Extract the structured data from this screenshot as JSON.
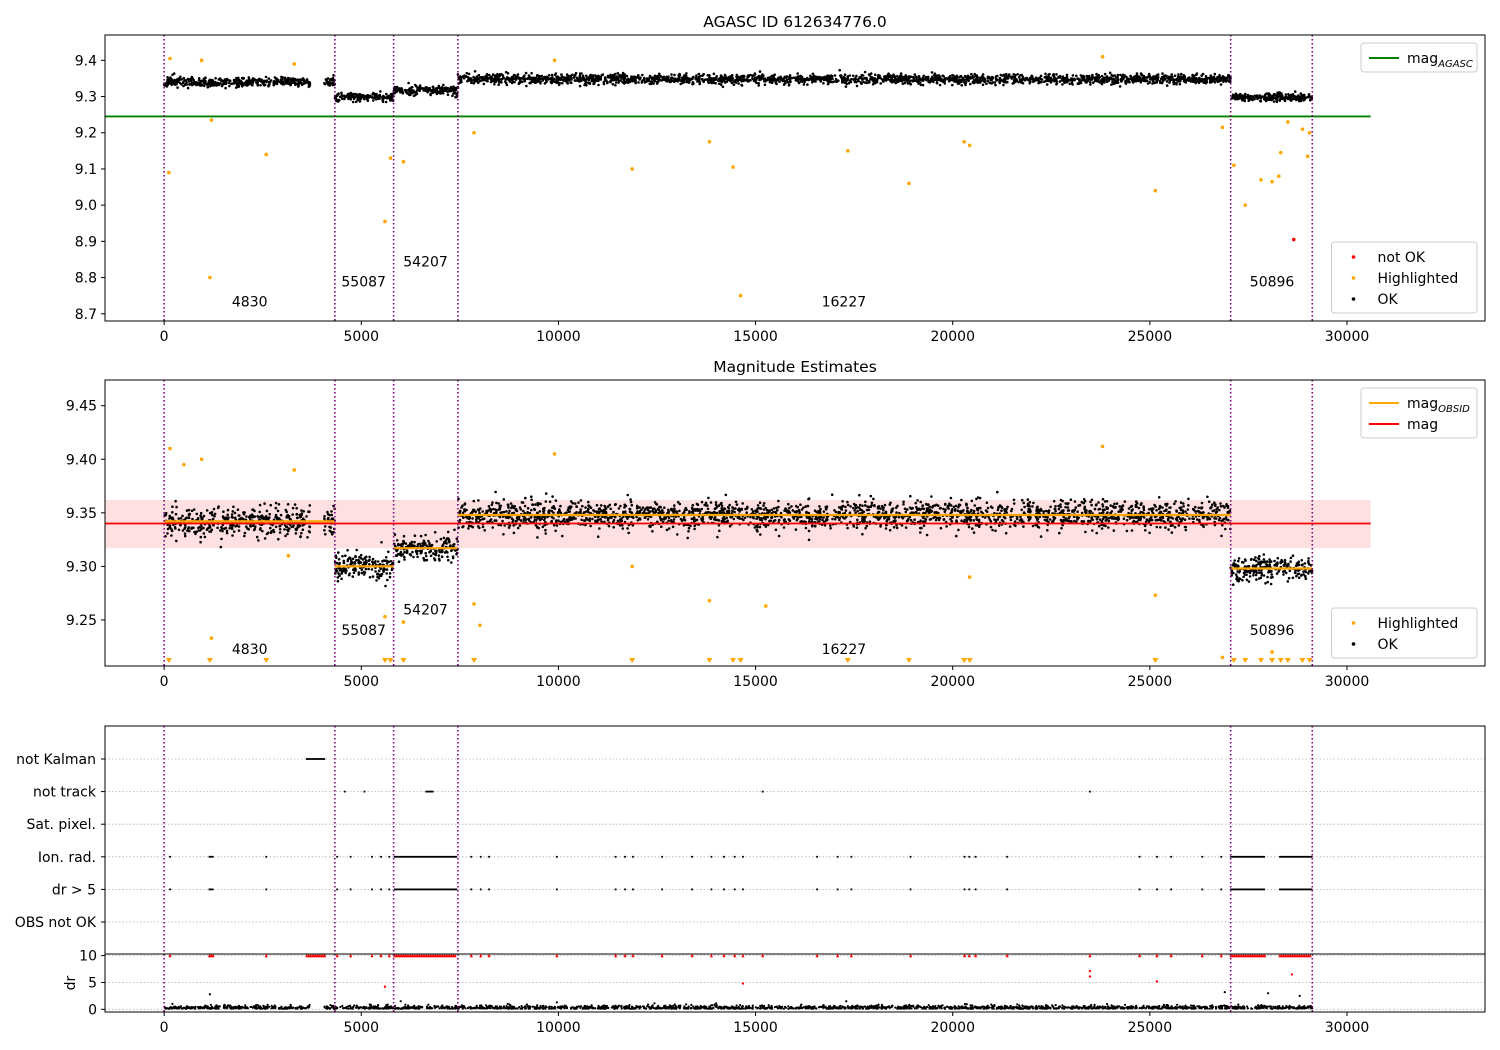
{
  "chart_data": [
    {
      "type": "scatter",
      "title": "AGASC ID 612634776.0",
      "xlabel": "",
      "ylabel": "",
      "xlim": [
        -1500,
        33500
      ],
      "ylim": [
        8.68,
        9.47
      ],
      "xticks": [
        0,
        5000,
        10000,
        15000,
        20000,
        25000,
        30000
      ],
      "yticks": [
        8.7,
        8.8,
        8.9,
        9.0,
        9.1,
        9.2,
        9.3,
        9.4
      ],
      "ytick_labels": [
        "8.7",
        "8.8",
        "8.9",
        "9.0",
        "9.1",
        "9.2",
        "9.3",
        "9.4"
      ],
      "obsid_boundaries": [
        0,
        4330,
        5820,
        7450,
        27050,
        29120
      ],
      "obsid_labels": [
        {
          "x": 2170,
          "y": 8.72,
          "text": "4830"
        },
        {
          "x": 5060,
          "y": 8.775,
          "text": "55087"
        },
        {
          "x": 6630,
          "y": 8.83,
          "text": "54207"
        },
        {
          "x": 17240,
          "y": 8.72,
          "text": "16227"
        },
        {
          "x": 28100,
          "y": 8.775,
          "text": "50896"
        }
      ],
      "lines": [
        {
          "name": "mag",
          "sub": "AGASC",
          "y": 9.245,
          "x": [
            -1500,
            30600
          ],
          "color": "#008000"
        }
      ],
      "segments": [
        {
          "x0": 0,
          "x1": 3700,
          "y": 9.34,
          "spread": 0.012,
          "kind": "uniform"
        },
        {
          "x0": 4050,
          "x1": 4330,
          "y": 9.34,
          "spread": 0.012,
          "kind": "step"
        },
        {
          "x0": 4330,
          "x1": 5820,
          "y": 9.3,
          "spread": 0.012,
          "kind": "uniform"
        },
        {
          "x0": 5820,
          "x1": 7450,
          "y": 9.317,
          "spread": 0.012,
          "kind": "uniform"
        },
        {
          "x0": 7450,
          "x1": 27050,
          "y": 9.348,
          "spread": 0.012,
          "kind": "uniform"
        },
        {
          "x0": 27050,
          "x1": 29120,
          "y": 9.298,
          "spread": 0.01,
          "kind": "uniform"
        }
      ],
      "series": [
        {
          "name": "not OK",
          "color": "#ff0000",
          "points": [
            [
              28650,
              8.905
            ]
          ]
        },
        {
          "name": "Highlighted",
          "color": "#ffa500",
          "points": [
            [
              120,
              9.09
            ],
            [
              1160,
              8.8
            ],
            [
              1200,
              9.235
            ],
            [
              2590,
              9.14
            ],
            [
              5600,
              8.955
            ],
            [
              5740,
              9.13
            ],
            [
              6070,
              9.12
            ],
            [
              7860,
              9.2
            ],
            [
              13830,
              9.175
            ],
            [
              14620,
              8.75
            ],
            [
              14430,
              9.105
            ],
            [
              11870,
              9.1
            ],
            [
              17340,
              9.15
            ],
            [
              18890,
              9.06
            ],
            [
              20290,
              9.175
            ],
            [
              20430,
              9.165
            ],
            [
              25140,
              9.04
            ],
            [
              26840,
              9.215
            ],
            [
              27130,
              9.11
            ],
            [
              27420,
              9.0
            ],
            [
              27820,
              9.07
            ],
            [
              28100,
              9.065
            ],
            [
              28270,
              9.08
            ],
            [
              28320,
              9.145
            ],
            [
              28870,
              9.21
            ],
            [
              29000,
              9.135
            ],
            [
              29050,
              9.2
            ],
            [
              150,
              9.405
            ],
            [
              950,
              9.4
            ],
            [
              3300,
              9.39
            ],
            [
              9900,
              9.4
            ],
            [
              23800,
              9.41
            ],
            [
              28500,
              9.23
            ]
          ]
        },
        {
          "name": "OK",
          "color": "#000000",
          "points": []
        }
      ],
      "legends": [
        {
          "position": "upper-right",
          "entries": [
            {
              "label": "mag",
              "sub": "AGASC",
              "kind": "line",
              "color": "#008000"
            }
          ]
        },
        {
          "position": "lower-right",
          "entries": [
            {
              "label": "not OK",
              "kind": "dot",
              "color": "#ff0000"
            },
            {
              "label": "Highlighted",
              "kind": "dot",
              "color": "#ffa500"
            },
            {
              "label": "OK",
              "kind": "dot",
              "color": "#000000"
            }
          ]
        }
      ]
    },
    {
      "type": "scatter",
      "title": "Magnitude Estimates",
      "xlabel": "",
      "ylabel": "",
      "xlim": [
        -1500,
        33500
      ],
      "ylim": [
        9.207,
        9.474
      ],
      "xticks": [
        0,
        5000,
        10000,
        15000,
        20000,
        25000,
        30000
      ],
      "yticks": [
        9.25,
        9.3,
        9.35,
        9.4,
        9.45
      ],
      "ytick_labels": [
        "9.25",
        "9.30",
        "9.35",
        "9.40",
        "9.45"
      ],
      "obsid_boundaries": [
        0,
        4330,
        5820,
        7450,
        27050,
        29120
      ],
      "obsid_labels": [
        {
          "x": 2170,
          "y": 9.218,
          "text": "4830"
        },
        {
          "x": 5060,
          "y": 9.236,
          "text": "55087"
        },
        {
          "x": 6630,
          "y": 9.255,
          "text": "54207"
        },
        {
          "x": 17240,
          "y": 9.218,
          "text": "16227"
        },
        {
          "x": 28100,
          "y": 9.236,
          "text": "50896"
        }
      ],
      "band": {
        "y0": 9.317,
        "y1": 9.362,
        "x": [
          -1500,
          30600
        ],
        "color": "#ff0000"
      },
      "lines": [
        {
          "name": "mag",
          "y": 9.34,
          "x": [
            -1500,
            30600
          ],
          "color": "#ff0000"
        }
      ],
      "obsid_mags": [
        {
          "x0": 0,
          "x1": 4330,
          "y": 9.342
        },
        {
          "x0": 4330,
          "x1": 5820,
          "y": 9.3
        },
        {
          "x0": 5820,
          "x1": 7450,
          "y": 9.317
        },
        {
          "x0": 7450,
          "x1": 27050,
          "y": 9.348
        },
        {
          "x0": 27050,
          "x1": 29120,
          "y": 9.298
        }
      ],
      "segments": [
        {
          "x0": 0,
          "x1": 3700,
          "y": 9.342,
          "spread": 0.012,
          "kind": "uniform"
        },
        {
          "x0": 4050,
          "x1": 4330,
          "y": 9.342,
          "spread": 0.012,
          "kind": "step"
        },
        {
          "x0": 4330,
          "x1": 5820,
          "y": 9.3,
          "spread": 0.012,
          "kind": "uniform"
        },
        {
          "x0": 5820,
          "x1": 7450,
          "y": 9.317,
          "spread": 0.012,
          "kind": "uniform"
        },
        {
          "x0": 7450,
          "x1": 27050,
          "y": 9.348,
          "spread": 0.012,
          "kind": "uniform"
        },
        {
          "x0": 27050,
          "x1": 29120,
          "y": 9.298,
          "spread": 0.01,
          "kind": "uniform"
        }
      ],
      "series": [
        {
          "name": "Highlighted",
          "color": "#ffa500",
          "points": [
            [
              150,
              9.41
            ],
            [
              500,
              9.395
            ],
            [
              950,
              9.4
            ],
            [
              3300,
              9.39
            ],
            [
              1200,
              9.233
            ],
            [
              5600,
              9.253
            ],
            [
              6070,
              9.248
            ],
            [
              7860,
              9.265
            ],
            [
              8010,
              9.245
            ],
            [
              9900,
              9.405
            ],
            [
              13830,
              9.268
            ],
            [
              15260,
              9.263
            ],
            [
              23800,
              9.412
            ],
            [
              25140,
              9.273
            ],
            [
              26840,
              9.215
            ],
            [
              28100,
              9.22
            ],
            [
              3150,
              9.31
            ],
            [
              11870,
              9.3
            ],
            [
              20430,
              9.29
            ]
          ]
        },
        {
          "name": "OK",
          "color": "#000000",
          "points": []
        }
      ],
      "offscale_markers_x": [
        120,
        1160,
        2590,
        5600,
        5740,
        6070,
        7860,
        11870,
        13830,
        14430,
        14620,
        17340,
        18890,
        20290,
        20430,
        25140,
        27130,
        27420,
        27820,
        28100,
        28320,
        28500,
        28870,
        29050
      ],
      "offscale_color": "#ffa500",
      "legends": [
        {
          "position": "upper-right",
          "entries": [
            {
              "label": "mag",
              "sub": "OBSID",
              "kind": "line",
              "color": "#ffa500"
            },
            {
              "label": "mag",
              "kind": "line",
              "color": "#ff0000"
            }
          ]
        },
        {
          "position": "lower-right",
          "entries": [
            {
              "label": "Highlighted",
              "kind": "dot",
              "color": "#ffa500"
            },
            {
              "label": "OK",
              "kind": "dot",
              "color": "#000000"
            }
          ]
        }
      ]
    },
    {
      "type": "scatter",
      "title": "",
      "xlabel": "",
      "ylabel": "",
      "xlim": [
        -1500,
        33500
      ],
      "categories": [
        "not Kalman",
        "not track",
        "Sat. pixel.",
        "Ion. rad.",
        "dr > 5",
        "OBS not OK"
      ],
      "obsid_boundaries": [
        0,
        4330,
        5820,
        7450,
        27050,
        29120
      ],
      "flags": {
        "not Kalman": {
          "ranges": [
            [
              3620,
              4070
            ]
          ],
          "points": []
        },
        "not track": {
          "ranges": [
            [
              6650,
              6820
            ]
          ],
          "points": [
            4580,
            5080,
            15180,
            23480
          ]
        },
        "Sat. pixel.": {
          "ranges": [],
          "points": []
        },
        "Ion. rad.": {
          "ranges": [
            [
              1150,
              1250
            ],
            [
              5850,
              7420
            ],
            [
              27060,
              27920
            ],
            [
              28300,
              29100
            ]
          ],
          "points": [
            150,
            2590,
            4390,
            4730,
            5270,
            5500,
            5710,
            7790,
            8030,
            8240,
            9960,
            11450,
            11690,
            11890,
            12630,
            13390,
            13880,
            14200,
            14470,
            14680,
            16560,
            17080,
            17430,
            18930,
            20300,
            20420,
            20580,
            21380,
            24740,
            25180,
            25540,
            26330,
            26810
          ]
        },
        "dr > 5": {
          "ranges": [
            [
              1150,
              1250
            ],
            [
              5850,
              7420
            ],
            [
              27060,
              27920
            ],
            [
              28300,
              29100
            ]
          ],
          "points": [
            150,
            2590,
            4390,
            4730,
            5270,
            5500,
            5710,
            7790,
            8030,
            8240,
            9960,
            11450,
            11690,
            11890,
            12630,
            13390,
            13880,
            14200,
            14470,
            14680,
            16560,
            17080,
            17430,
            18930,
            20300,
            20420,
            20580,
            21380,
            24740,
            25180,
            25540,
            26330,
            26810
          ]
        },
        "OBS not OK": {
          "ranges": [],
          "points": []
        }
      }
    },
    {
      "type": "scatter",
      "title": "",
      "xlabel": "",
      "ylabel": "dr",
      "xlim": [
        -1500,
        33500
      ],
      "ylim": [
        -0.5,
        10.3
      ],
      "xticks": [
        0,
        5000,
        10000,
        15000,
        20000,
        25000,
        30000
      ],
      "yticks": [
        0,
        5,
        10
      ],
      "ytick_labels": [
        "0",
        "5",
        "10"
      ],
      "obsid_boundaries": [
        0,
        4330,
        5820,
        7450,
        27050,
        29120
      ],
      "clip_markers": {
        "color": "#ff0000",
        "y": 10,
        "ranges": [
          [
            1150,
            1250
          ],
          [
            3620,
            4070
          ],
          [
            5850,
            7420
          ],
          [
            27060,
            27920
          ],
          [
            28300,
            29100
          ]
        ],
        "points": [
          150,
          2590,
          4390,
          4730,
          5270,
          5500,
          5710,
          7790,
          8030,
          8240,
          9960,
          11450,
          11690,
          11890,
          12630,
          13390,
          13880,
          14200,
          14470,
          14680,
          15180,
          16560,
          17080,
          17430,
          18930,
          20300,
          20420,
          20580,
          21380,
          23480,
          24740,
          25180,
          25540,
          26330,
          26810
        ]
      },
      "series": [
        {
          "name": "dr-outliers",
          "color": "#ff0000",
          "points": [
            [
              23480,
              7.1
            ],
            [
              23480,
              6.1
            ],
            [
              14680,
              4.8
            ],
            [
              5600,
              4.2
            ],
            [
              25180,
              5.2
            ],
            [
              28600,
              6.5
            ]
          ]
        },
        {
          "name": "dr-small",
          "color": "#000000",
          "points": [
            [
              1160,
              2.8
            ],
            [
              6000,
              1.5
            ],
            [
              17300,
              1.5
            ],
            [
              9960,
              1.3
            ],
            [
              14000,
              1.1
            ],
            [
              26900,
              3.2
            ],
            [
              28000,
              3.0
            ],
            [
              28800,
              2.5
            ]
          ]
        }
      ]
    }
  ]
}
